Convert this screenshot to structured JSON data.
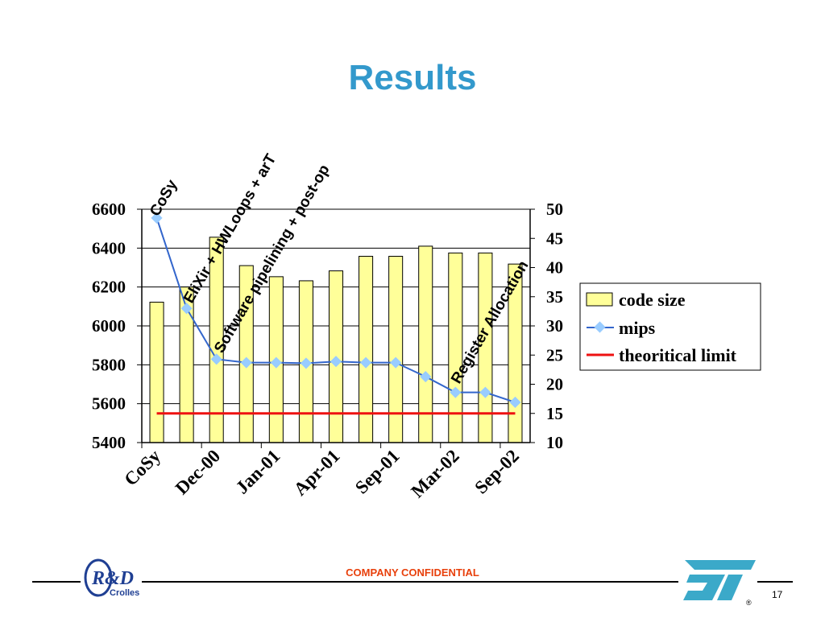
{
  "slide": {
    "title": "Results",
    "confidential": "COMPANY CONFIDENTIAL",
    "page_number": "17",
    "rd_logo_text": "R&D",
    "rd_logo_subtitle": "Crolles",
    "st_logo_text": "ST",
    "registered_mark": "®"
  },
  "chart_data": {
    "type": "bar",
    "categories": [
      "CoSy",
      "",
      "Dec-00",
      "",
      "Jan-01",
      "",
      "Apr-01",
      "",
      "Sep-01",
      "",
      "Mar-02",
      "",
      "Sep-02"
    ],
    "series": [
      {
        "name": "code size",
        "type": "bar",
        "axis": "left",
        "values": [
          6122,
          6200,
          6456,
          6310,
          6253,
          6232,
          6283,
          6358,
          6358,
          6410,
          6375,
          6375,
          6318
        ],
        "color": "#ffff99"
      },
      {
        "name": "mips",
        "type": "line",
        "axis": "right",
        "values": [
          48.5,
          33.0,
          24.3,
          23.7,
          23.7,
          23.6,
          23.9,
          23.7,
          23.7,
          21.3,
          18.6,
          18.6,
          16.9
        ],
        "color": "#3366cc"
      },
      {
        "name": "theoritical limit",
        "type": "line",
        "axis": "right",
        "values": [
          15,
          15,
          15,
          15,
          15,
          15,
          15,
          15,
          15,
          15,
          15,
          15,
          15
        ],
        "color": "#ee1111"
      }
    ],
    "left_axis": {
      "ylim": [
        5400,
        6600
      ],
      "ticks": [
        "6600",
        "6400",
        "6200",
        "6000",
        "5800",
        "5600",
        "5400"
      ]
    },
    "right_axis": {
      "ylim": [
        10,
        50
      ],
      "ticks": [
        "50",
        "45",
        "40",
        "35",
        "30",
        "25",
        "20",
        "15",
        "10"
      ]
    },
    "x_tick_labels": [
      "CoSy",
      "Dec-00",
      "Jan-01",
      "Apr-01",
      "Sep-01",
      "Mar-02",
      "Sep-02"
    ],
    "annotations": [
      {
        "text": "CoSy",
        "category": 0
      },
      {
        "text": "EliXir + HWLoops + arT",
        "category": 1
      },
      {
        "text": "Software pipelining + post-op",
        "category": 2
      },
      {
        "text": "Register Allocation",
        "category": 10
      }
    ],
    "grid": true,
    "legend_position": "right"
  }
}
